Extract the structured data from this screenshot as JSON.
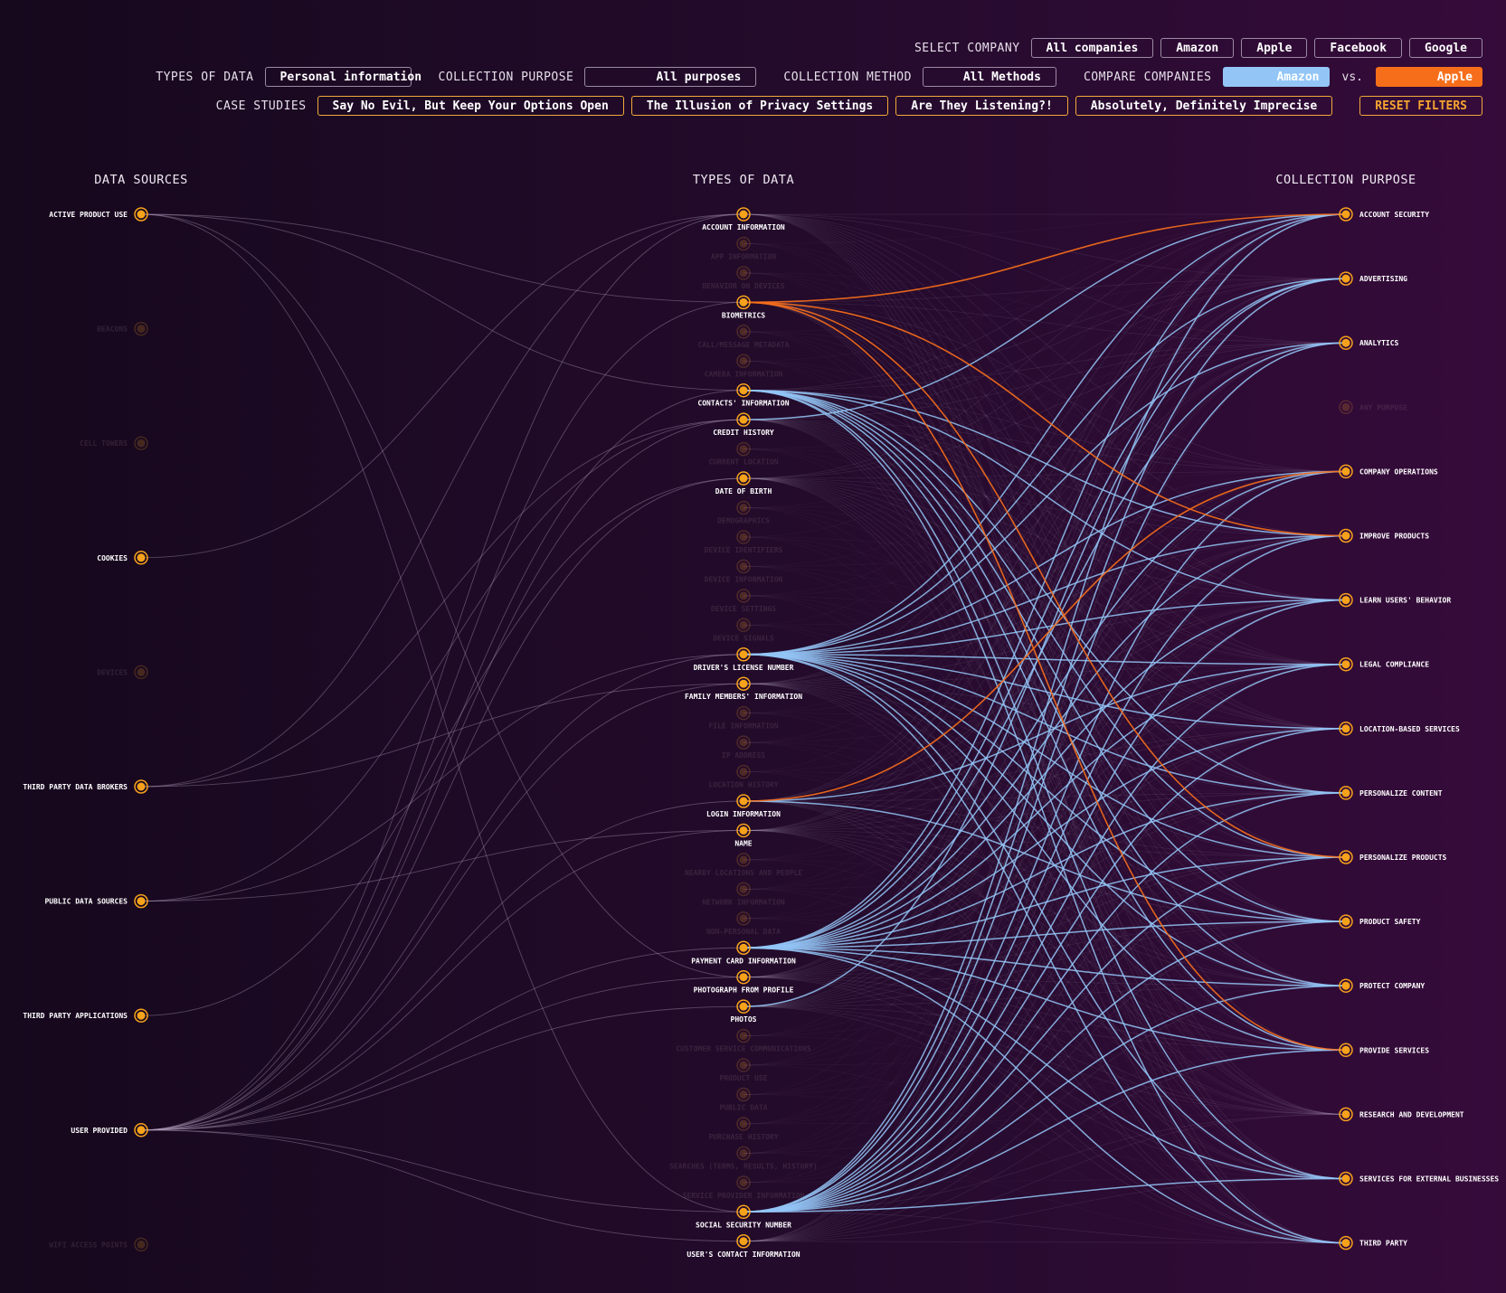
{
  "controls": {
    "select_company_label": "SELECT COMPANY",
    "companies": [
      "All companies",
      "Amazon",
      "Apple",
      "Facebook",
      "Google"
    ],
    "types_of_data_label": "TYPES OF DATA",
    "types_of_data_value": "Personal information",
    "collection_purpose_label": "COLLECTION PURPOSE",
    "collection_purpose_value": "All purposes",
    "collection_method_label": "COLLECTION METHOD",
    "collection_method_value": "All Methods",
    "compare_label": "COMPARE COMPANIES",
    "compare_a": "Amazon",
    "vs_label": "vs.",
    "compare_b": "Apple",
    "case_studies_label": "CASE STUDIES",
    "case_studies": [
      "Say No Evil, But Keep Your Options Open",
      "The Illusion of Privacy Settings",
      "Are They Listening?!",
      "Absolutely, Definitely Imprecise"
    ],
    "reset_label": "RESET FILTERS"
  },
  "colors": {
    "node": "#f7a21b",
    "company_a": "#93c6f7",
    "company_b": "#f76e1a",
    "faint_link": "#b59fc0"
  },
  "diagram": {
    "columns": {
      "sources": "DATA SOURCES",
      "types": "TYPES OF DATA",
      "purposes": "COLLECTION PURPOSE"
    },
    "sources": [
      {
        "name": "ACTIVE PRODUCT USE",
        "active": true
      },
      {
        "name": "BEACONS",
        "active": false
      },
      {
        "name": "CELL TOWERS",
        "active": false
      },
      {
        "name": "COOKIES",
        "active": true
      },
      {
        "name": "DEVICES",
        "active": false
      },
      {
        "name": "THIRD PARTY DATA BROKERS",
        "active": true
      },
      {
        "name": "PUBLIC DATA SOURCES",
        "active": true
      },
      {
        "name": "THIRD PARTY APPLICATIONS",
        "active": true
      },
      {
        "name": "USER PROVIDED",
        "active": true
      },
      {
        "name": "WIFI ACCESS POINTS",
        "active": false
      }
    ],
    "types": [
      {
        "name": "ACCOUNT INFORMATION",
        "active": true
      },
      {
        "name": "APP INFORMATION",
        "active": false
      },
      {
        "name": "BEHAVIOR ON DEVICES",
        "active": false
      },
      {
        "name": "BIOMETRICS",
        "active": true
      },
      {
        "name": "CALL/MESSAGE METADATA",
        "active": false
      },
      {
        "name": "CAMERA INFORMATION",
        "active": false
      },
      {
        "name": "CONTACTS' INFORMATION",
        "active": true
      },
      {
        "name": "CREDIT HISTORY",
        "active": true
      },
      {
        "name": "CURRENT LOCATION",
        "active": false
      },
      {
        "name": "DATE OF BIRTH",
        "active": true
      },
      {
        "name": "DEMOGRAPHICS",
        "active": false
      },
      {
        "name": "DEVICE IDENTIFIERS",
        "active": false
      },
      {
        "name": "DEVICE INFORMATION",
        "active": false
      },
      {
        "name": "DEVICE SETTINGS",
        "active": false
      },
      {
        "name": "DEVICE SIGNALS",
        "active": false
      },
      {
        "name": "DRIVER'S LICENSE NUMBER",
        "active": true
      },
      {
        "name": "FAMILY MEMBERS' INFORMATION",
        "active": true
      },
      {
        "name": "FILE INFORMATION",
        "active": false
      },
      {
        "name": "IP ADDRESS",
        "active": false
      },
      {
        "name": "LOCATION HISTORY",
        "active": false
      },
      {
        "name": "LOGIN INFORMATION",
        "active": true
      },
      {
        "name": "NAME",
        "active": true
      },
      {
        "name": "NEARBY LOCATIONS AND PEOPLE",
        "active": false
      },
      {
        "name": "NETWORK INFORMATION",
        "active": false
      },
      {
        "name": "NON-PERSONAL DATA",
        "active": false
      },
      {
        "name": "PAYMENT CARD INFORMATION",
        "active": true
      },
      {
        "name": "PHOTOGRAPH FROM PROFILE",
        "active": true
      },
      {
        "name": "PHOTOS",
        "active": true
      },
      {
        "name": "CUSTOMER SERVICE COMMUNICATIONS",
        "active": false
      },
      {
        "name": "PRODUCT USE",
        "active": false
      },
      {
        "name": "PUBLIC DATA",
        "active": false
      },
      {
        "name": "PURCHASE HISTORY",
        "active": false
      },
      {
        "name": "SEARCHES (TERMS, RESULTS, HISTORY)",
        "active": false
      },
      {
        "name": "SERVICE PROVIDER INFORMATION",
        "active": false
      },
      {
        "name": "SOCIAL SECURITY NUMBER",
        "active": true
      },
      {
        "name": "USER'S CONTACT INFORMATION",
        "active": true
      }
    ],
    "purposes": [
      {
        "name": "ACCOUNT SECURITY",
        "active": true
      },
      {
        "name": "ADVERTISING",
        "active": true
      },
      {
        "name": "ANALYTICS",
        "active": true
      },
      {
        "name": "ANY PURPOSE",
        "active": false
      },
      {
        "name": "COMPANY OPERATIONS",
        "active": true
      },
      {
        "name": "IMPROVE PRODUCTS",
        "active": true
      },
      {
        "name": "LEARN USERS' BEHAVIOR",
        "active": true
      },
      {
        "name": "LEGAL COMPLIANCE",
        "active": true
      },
      {
        "name": "LOCATION-BASED SERVICES",
        "active": true
      },
      {
        "name": "PERSONALIZE CONTENT",
        "active": true
      },
      {
        "name": "PERSONALIZE PRODUCTS",
        "active": true
      },
      {
        "name": "PRODUCT SAFETY",
        "active": true
      },
      {
        "name": "PROTECT COMPANY",
        "active": true
      },
      {
        "name": "PROVIDE SERVICES",
        "active": true
      },
      {
        "name": "RESEARCH AND DEVELOPMENT",
        "active": true
      },
      {
        "name": "SERVICES FOR EXTERNAL BUSINESSES",
        "active": true
      },
      {
        "name": "THIRD PARTY",
        "active": true
      }
    ],
    "source_links": [
      [
        "ACTIVE PRODUCT USE",
        "BIOMETRICS"
      ],
      [
        "ACTIVE PRODUCT USE",
        "CONTACTS' INFORMATION"
      ],
      [
        "ACTIVE PRODUCT USE",
        "PHOTOGRAPH FROM PROFILE"
      ],
      [
        "ACTIVE PRODUCT USE",
        "SOCIAL SECURITY NUMBER"
      ],
      [
        "COOKIES",
        "ACCOUNT INFORMATION"
      ],
      [
        "THIRD PARTY DATA BROKERS",
        "ACCOUNT INFORMATION"
      ],
      [
        "THIRD PARTY DATA BROKERS",
        "CREDIT HISTORY"
      ],
      [
        "THIRD PARTY DATA BROKERS",
        "FAMILY MEMBERS' INFORMATION"
      ],
      [
        "PUBLIC DATA SOURCES",
        "CREDIT HISTORY"
      ],
      [
        "PUBLIC DATA SOURCES",
        "DRIVER'S LICENSE NUMBER"
      ],
      [
        "PUBLIC DATA SOURCES",
        "NAME"
      ],
      [
        "THIRD PARTY APPLICATIONS",
        "DATE OF BIRTH"
      ],
      [
        "USER PROVIDED",
        "ACCOUNT INFORMATION"
      ],
      [
        "USER PROVIDED",
        "BIOMETRICS"
      ],
      [
        "USER PROVIDED",
        "CONTACTS' INFORMATION"
      ],
      [
        "USER PROVIDED",
        "CREDIT HISTORY"
      ],
      [
        "USER PROVIDED",
        "DATE OF BIRTH"
      ],
      [
        "USER PROVIDED",
        "DRIVER'S LICENSE NUMBER"
      ],
      [
        "USER PROVIDED",
        "FAMILY MEMBERS' INFORMATION"
      ],
      [
        "USER PROVIDED",
        "LOGIN INFORMATION"
      ],
      [
        "USER PROVIDED",
        "NAME"
      ],
      [
        "USER PROVIDED",
        "PAYMENT CARD INFORMATION"
      ],
      [
        "USER PROVIDED",
        "PHOTOGRAPH FROM PROFILE"
      ],
      [
        "USER PROVIDED",
        "PHOTOS"
      ],
      [
        "USER PROVIDED",
        "SOCIAL SECURITY NUMBER"
      ],
      [
        "USER PROVIDED",
        "USER'S CONTACT INFORMATION"
      ]
    ],
    "company_a_links": [
      [
        "CONTACTS' INFORMATION",
        "LEARN USERS' BEHAVIOR"
      ],
      [
        "CONTACTS' INFORMATION",
        "PERSONALIZE CONTENT"
      ],
      [
        "CONTACTS' INFORMATION",
        "PERSONALIZE PRODUCTS"
      ],
      [
        "CONTACTS' INFORMATION",
        "PRODUCT SAFETY"
      ],
      [
        "CONTACTS' INFORMATION",
        "PROTECT COMPANY"
      ],
      [
        "CONTACTS' INFORMATION",
        "PROVIDE SERVICES"
      ],
      [
        "CONTACTS' INFORMATION",
        "SERVICES FOR EXTERNAL BUSINESSES"
      ],
      [
        "CONTACTS' INFORMATION",
        "THIRD PARTY"
      ],
      [
        "CONTACTS' INFORMATION",
        "IMPROVE PRODUCTS"
      ],
      [
        "CREDIT HISTORY",
        "ACCOUNT SECURITY"
      ],
      [
        "DRIVER'S LICENSE NUMBER",
        "ACCOUNT SECURITY"
      ],
      [
        "DRIVER'S LICENSE NUMBER",
        "ADVERTISING"
      ],
      [
        "DRIVER'S LICENSE NUMBER",
        "ANALYTICS"
      ],
      [
        "DRIVER'S LICENSE NUMBER",
        "COMPANY OPERATIONS"
      ],
      [
        "DRIVER'S LICENSE NUMBER",
        "IMPROVE PRODUCTS"
      ],
      [
        "DRIVER'S LICENSE NUMBER",
        "LEARN USERS' BEHAVIOR"
      ],
      [
        "DRIVER'S LICENSE NUMBER",
        "LEGAL COMPLIANCE"
      ],
      [
        "DRIVER'S LICENSE NUMBER",
        "LOCATION-BASED SERVICES"
      ],
      [
        "DRIVER'S LICENSE NUMBER",
        "PERSONALIZE CONTENT"
      ],
      [
        "DRIVER'S LICENSE NUMBER",
        "PERSONALIZE PRODUCTS"
      ],
      [
        "DRIVER'S LICENSE NUMBER",
        "PRODUCT SAFETY"
      ],
      [
        "DRIVER'S LICENSE NUMBER",
        "PROTECT COMPANY"
      ],
      [
        "DRIVER'S LICENSE NUMBER",
        "PROVIDE SERVICES"
      ],
      [
        "DRIVER'S LICENSE NUMBER",
        "SERVICES FOR EXTERNAL BUSINESSES"
      ],
      [
        "DRIVER'S LICENSE NUMBER",
        "THIRD PARTY"
      ],
      [
        "LOGIN INFORMATION",
        "LEGAL COMPLIANCE"
      ],
      [
        "LOGIN INFORMATION",
        "PRODUCT SAFETY"
      ],
      [
        "PAYMENT CARD INFORMATION",
        "ACCOUNT SECURITY"
      ],
      [
        "PAYMENT CARD INFORMATION",
        "ADVERTISING"
      ],
      [
        "PAYMENT CARD INFORMATION",
        "ANALYTICS"
      ],
      [
        "PAYMENT CARD INFORMATION",
        "COMPANY OPERATIONS"
      ],
      [
        "PAYMENT CARD INFORMATION",
        "IMPROVE PRODUCTS"
      ],
      [
        "PAYMENT CARD INFORMATION",
        "LEARN USERS' BEHAVIOR"
      ],
      [
        "PAYMENT CARD INFORMATION",
        "LEGAL COMPLIANCE"
      ],
      [
        "PAYMENT CARD INFORMATION",
        "LOCATION-BASED SERVICES"
      ],
      [
        "PAYMENT CARD INFORMATION",
        "PERSONALIZE CONTENT"
      ],
      [
        "PAYMENT CARD INFORMATION",
        "PERSONALIZE PRODUCTS"
      ],
      [
        "PAYMENT CARD INFORMATION",
        "PRODUCT SAFETY"
      ],
      [
        "PAYMENT CARD INFORMATION",
        "PROTECT COMPANY"
      ],
      [
        "PAYMENT CARD INFORMATION",
        "PROVIDE SERVICES"
      ],
      [
        "PAYMENT CARD INFORMATION",
        "SERVICES FOR EXTERNAL BUSINESSES"
      ],
      [
        "PAYMENT CARD INFORMATION",
        "THIRD PARTY"
      ],
      [
        "PHOTOS",
        "ADVERTISING"
      ],
      [
        "SOCIAL SECURITY NUMBER",
        "ACCOUNT SECURITY"
      ],
      [
        "SOCIAL SECURITY NUMBER",
        "ADVERTISING"
      ],
      [
        "SOCIAL SECURITY NUMBER",
        "ANALYTICS"
      ],
      [
        "SOCIAL SECURITY NUMBER",
        "COMPANY OPERATIONS"
      ],
      [
        "SOCIAL SECURITY NUMBER",
        "IMPROVE PRODUCTS"
      ],
      [
        "SOCIAL SECURITY NUMBER",
        "LEARN USERS' BEHAVIOR"
      ],
      [
        "SOCIAL SECURITY NUMBER",
        "LEGAL COMPLIANCE"
      ],
      [
        "SOCIAL SECURITY NUMBER",
        "LOCATION-BASED SERVICES"
      ],
      [
        "SOCIAL SECURITY NUMBER",
        "PERSONALIZE CONTENT"
      ],
      [
        "SOCIAL SECURITY NUMBER",
        "PERSONALIZE PRODUCTS"
      ],
      [
        "SOCIAL SECURITY NUMBER",
        "PRODUCT SAFETY"
      ],
      [
        "SOCIAL SECURITY NUMBER",
        "PROTECT COMPANY"
      ],
      [
        "SOCIAL SECURITY NUMBER",
        "PROVIDE SERVICES"
      ],
      [
        "SOCIAL SECURITY NUMBER",
        "SERVICES FOR EXTERNAL BUSINESSES"
      ]
    ],
    "company_b_links": [
      [
        "BIOMETRICS",
        "ACCOUNT SECURITY"
      ],
      [
        "BIOMETRICS",
        "IMPROVE PRODUCTS"
      ],
      [
        "BIOMETRICS",
        "PERSONALIZE PRODUCTS"
      ],
      [
        "BIOMETRICS",
        "PROVIDE SERVICES"
      ],
      [
        "LOGIN INFORMATION",
        "COMPANY OPERATIONS"
      ]
    ]
  }
}
